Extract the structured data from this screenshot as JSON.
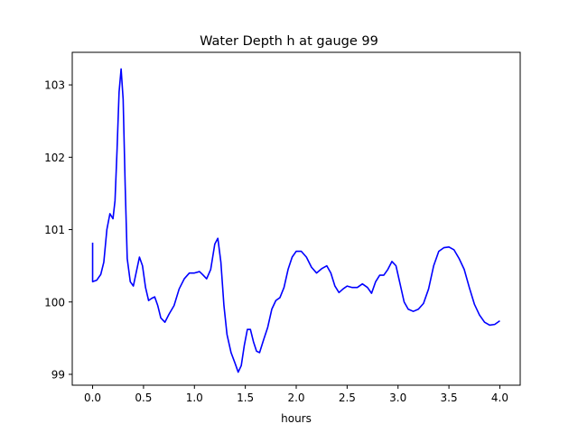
{
  "chart_data": {
    "type": "line",
    "title": "Water Depth h at gauge 99",
    "xlabel": "hours",
    "ylabel": "",
    "xlim": [
      -0.2,
      4.2
    ],
    "ylim": [
      98.85,
      103.45
    ],
    "xticks": [
      0.0,
      0.5,
      1.0,
      1.5,
      2.0,
      2.5,
      3.0,
      3.5,
      4.0
    ],
    "xtick_labels": [
      "0.0",
      "0.5",
      "1.0",
      "1.5",
      "2.0",
      "2.5",
      "3.0",
      "3.5",
      "4.0"
    ],
    "yticks": [
      99,
      100,
      101,
      102,
      103
    ],
    "ytick_labels": [
      "99",
      "100",
      "101",
      "102",
      "103"
    ],
    "grid": false,
    "series": [
      {
        "color": "#0000ff",
        "x": [
          0.0,
          0.0,
          0.04,
          0.08,
          0.11,
          0.14,
          0.17,
          0.2,
          0.22,
          0.24,
          0.26,
          0.28,
          0.3,
          0.32,
          0.34,
          0.37,
          0.4,
          0.43,
          0.46,
          0.49,
          0.52,
          0.55,
          0.58,
          0.61,
          0.64,
          0.67,
          0.71,
          0.75,
          0.8,
          0.85,
          0.9,
          0.95,
          1.0,
          1.05,
          1.08,
          1.12,
          1.16,
          1.2,
          1.23,
          1.26,
          1.29,
          1.32,
          1.36,
          1.4,
          1.43,
          1.46,
          1.49,
          1.52,
          1.55,
          1.58,
          1.61,
          1.64,
          1.68,
          1.72,
          1.76,
          1.8,
          1.84,
          1.88,
          1.92,
          1.96,
          2.0,
          2.05,
          2.1,
          2.15,
          2.2,
          2.25,
          2.3,
          2.34,
          2.38,
          2.42,
          2.46,
          2.5,
          2.55,
          2.6,
          2.65,
          2.7,
          2.74,
          2.78,
          2.82,
          2.86,
          2.9,
          2.94,
          2.98,
          3.02,
          3.06,
          3.1,
          3.15,
          3.2,
          3.25,
          3.3,
          3.35,
          3.4,
          3.45,
          3.5,
          3.55,
          3.6,
          3.65,
          3.7,
          3.75,
          3.8,
          3.85,
          3.9,
          3.95,
          4.0
        ],
        "y": [
          100.82,
          100.28,
          100.3,
          100.38,
          100.55,
          101.0,
          101.22,
          101.15,
          101.4,
          102.1,
          102.9,
          103.22,
          102.8,
          101.6,
          100.6,
          100.28,
          100.22,
          100.42,
          100.62,
          100.5,
          100.2,
          100.02,
          100.05,
          100.07,
          99.95,
          99.78,
          99.72,
          99.83,
          99.95,
          100.18,
          100.32,
          100.4,
          100.4,
          100.42,
          100.38,
          100.32,
          100.45,
          100.8,
          100.88,
          100.55,
          99.95,
          99.55,
          99.3,
          99.15,
          99.03,
          99.12,
          99.4,
          99.62,
          99.62,
          99.45,
          99.32,
          99.3,
          99.48,
          99.65,
          99.9,
          100.02,
          100.06,
          100.2,
          100.45,
          100.62,
          100.7,
          100.7,
          100.62,
          100.48,
          100.4,
          100.46,
          100.5,
          100.4,
          100.22,
          100.13,
          100.18,
          100.22,
          100.2,
          100.2,
          100.25,
          100.2,
          100.12,
          100.28,
          100.37,
          100.37,
          100.45,
          100.56,
          100.5,
          100.25,
          100.0,
          99.9,
          99.87,
          99.9,
          99.98,
          100.18,
          100.5,
          100.7,
          100.75,
          100.76,
          100.72,
          100.6,
          100.45,
          100.2,
          99.97,
          99.82,
          99.72,
          99.68,
          99.69,
          99.74
        ]
      }
    ]
  }
}
